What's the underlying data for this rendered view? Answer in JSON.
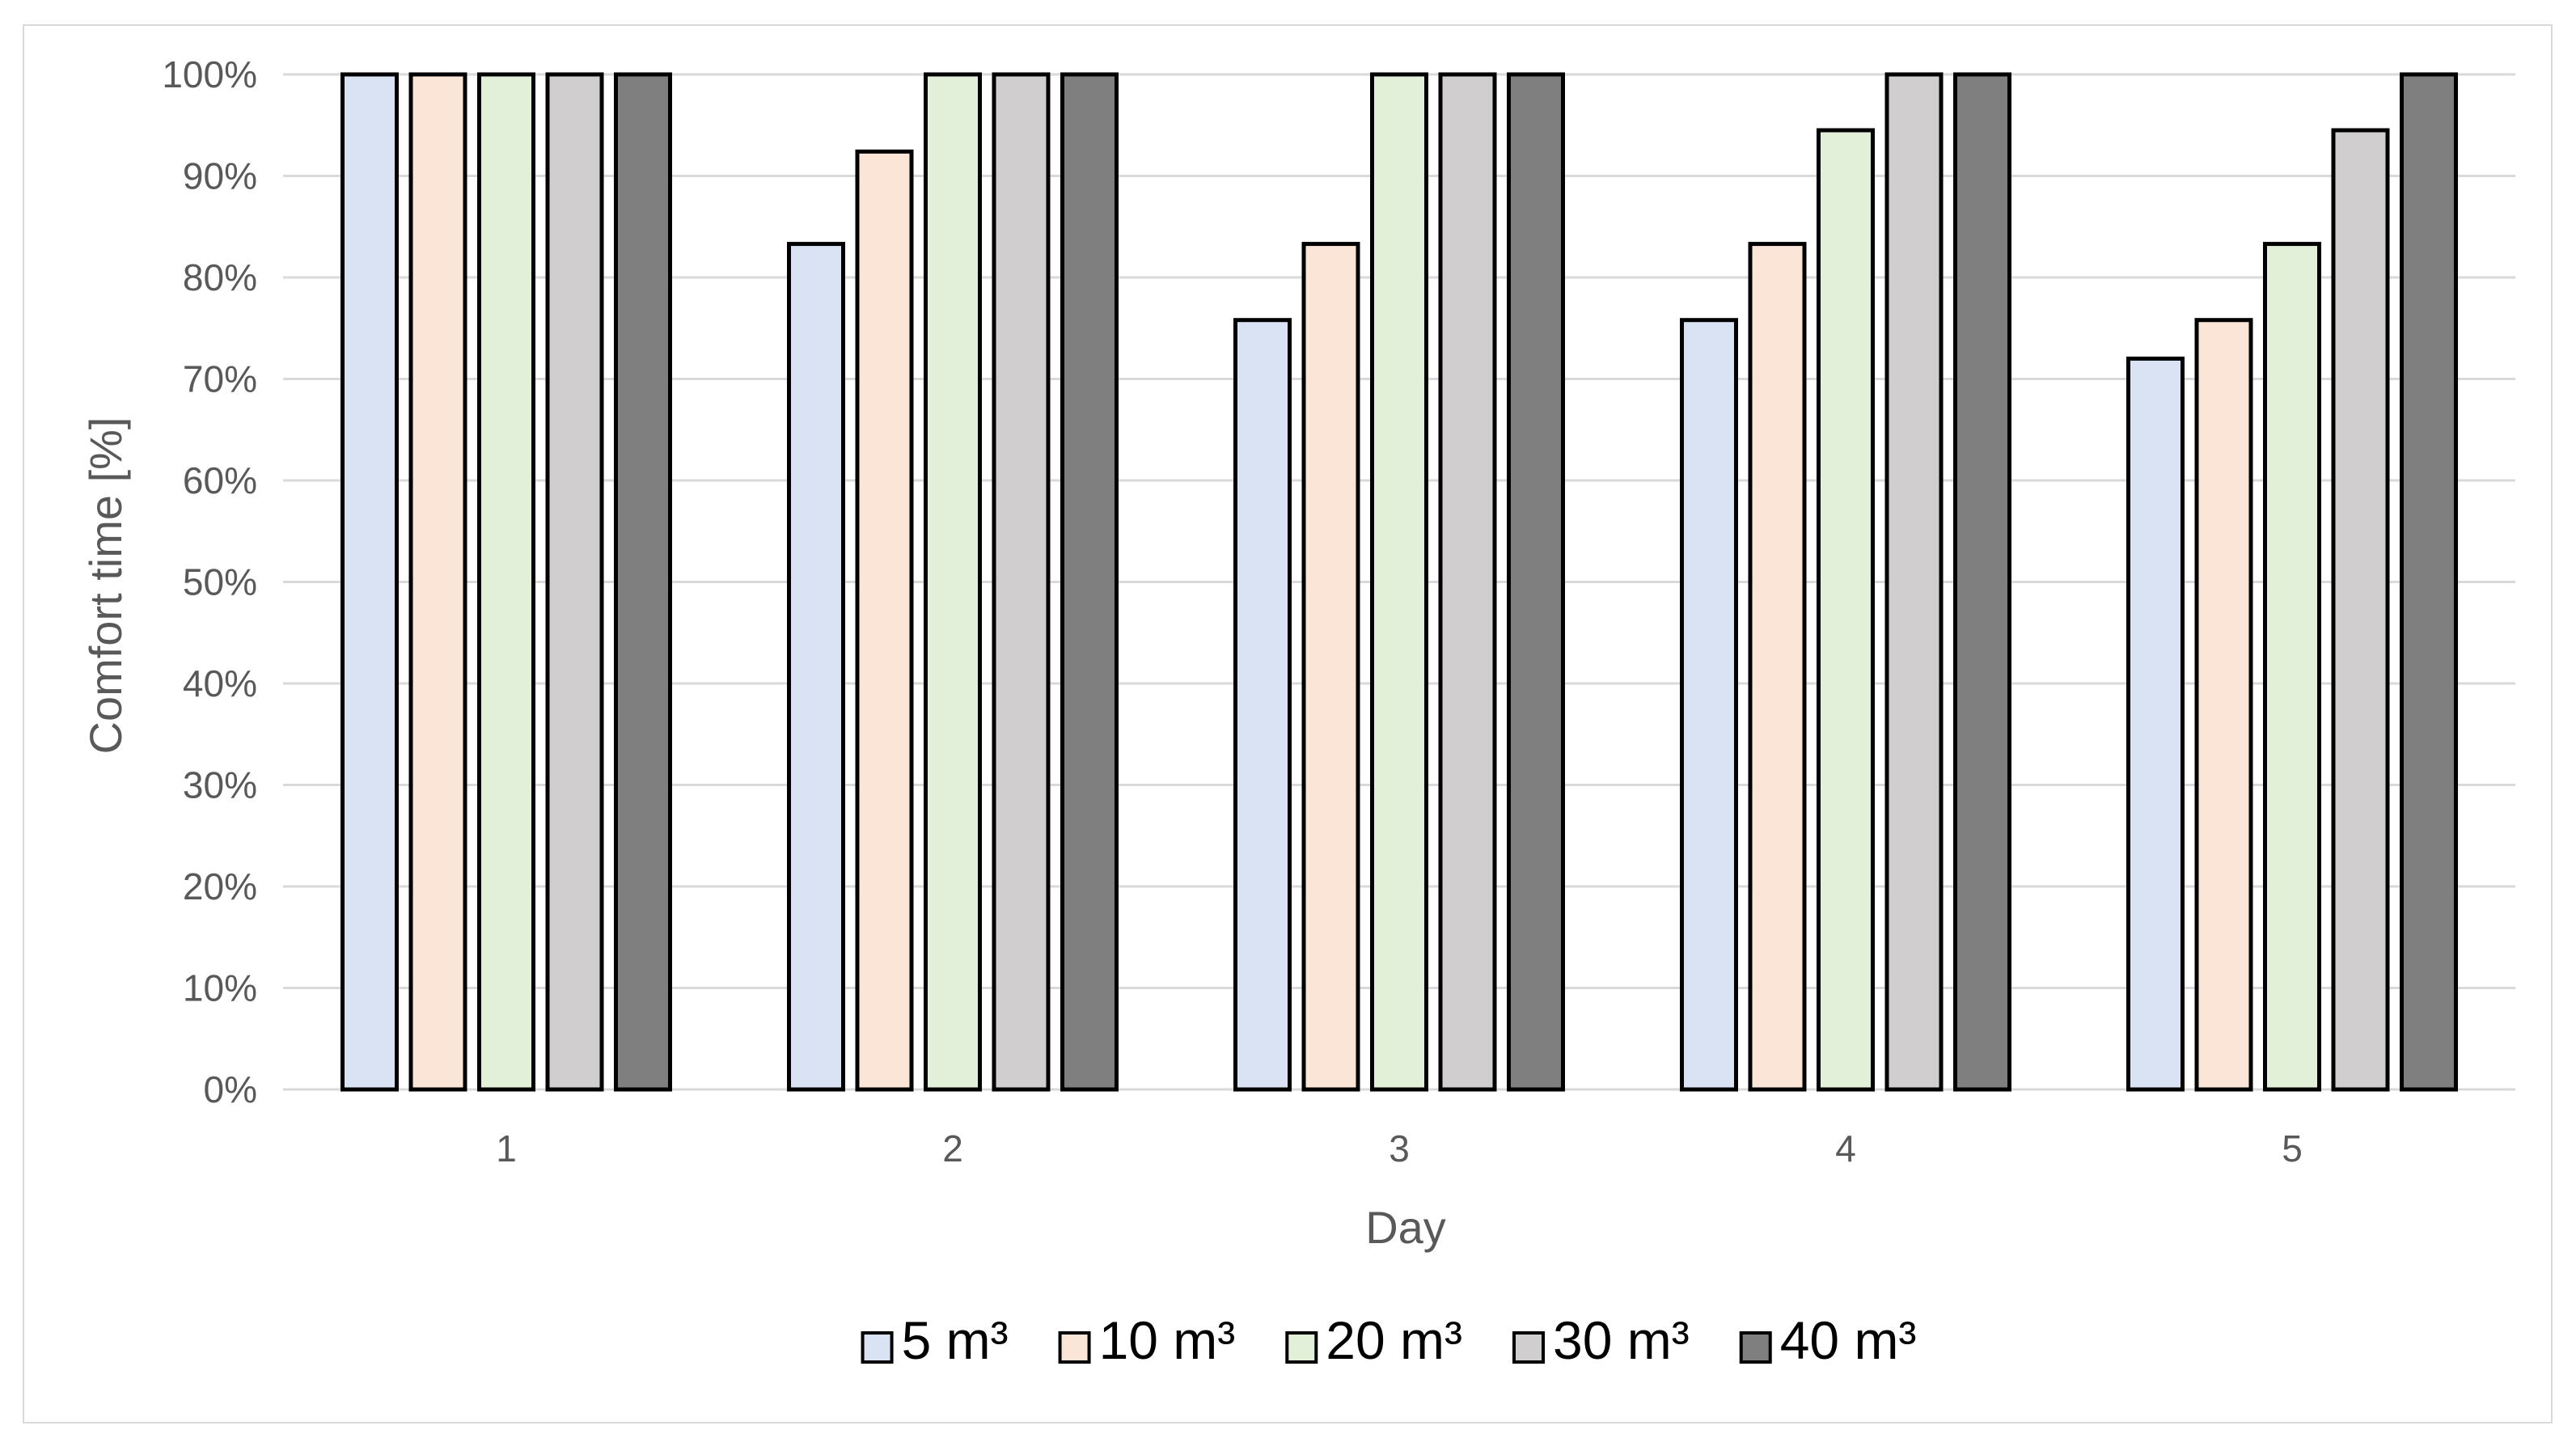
{
  "chart_data": {
    "type": "bar",
    "title": "",
    "xlabel": "Day",
    "ylabel": "Comfort time [%]",
    "ylim": [
      0,
      100
    ],
    "grid": true,
    "legend_position": "bottom",
    "categories": [
      "1",
      "2",
      "3",
      "4",
      "5"
    ],
    "y_ticks": [
      "0%",
      "10%",
      "20%",
      "30%",
      "40%",
      "50%",
      "60%",
      "70%",
      "80%",
      "90%",
      "100%"
    ],
    "series": [
      {
        "name": "5 m³",
        "color": "#dae3f3",
        "values": [
          100,
          83.3,
          75.8,
          75.8,
          72.0
        ]
      },
      {
        "name": "10 m³",
        "color": "#fbe5d6",
        "values": [
          100,
          92.4,
          83.3,
          83.3,
          75.8
        ]
      },
      {
        "name": "20 m³",
        "color": "#e2f0d9",
        "values": [
          100,
          100,
          100,
          94.5,
          83.3
        ]
      },
      {
        "name": "30 m³",
        "color": "#d0cece",
        "values": [
          100,
          100,
          100,
          100,
          94.5
        ]
      },
      {
        "name": "40 m³",
        "color": "#7f7f7f",
        "values": [
          100,
          100,
          100,
          100,
          100
        ]
      }
    ]
  }
}
